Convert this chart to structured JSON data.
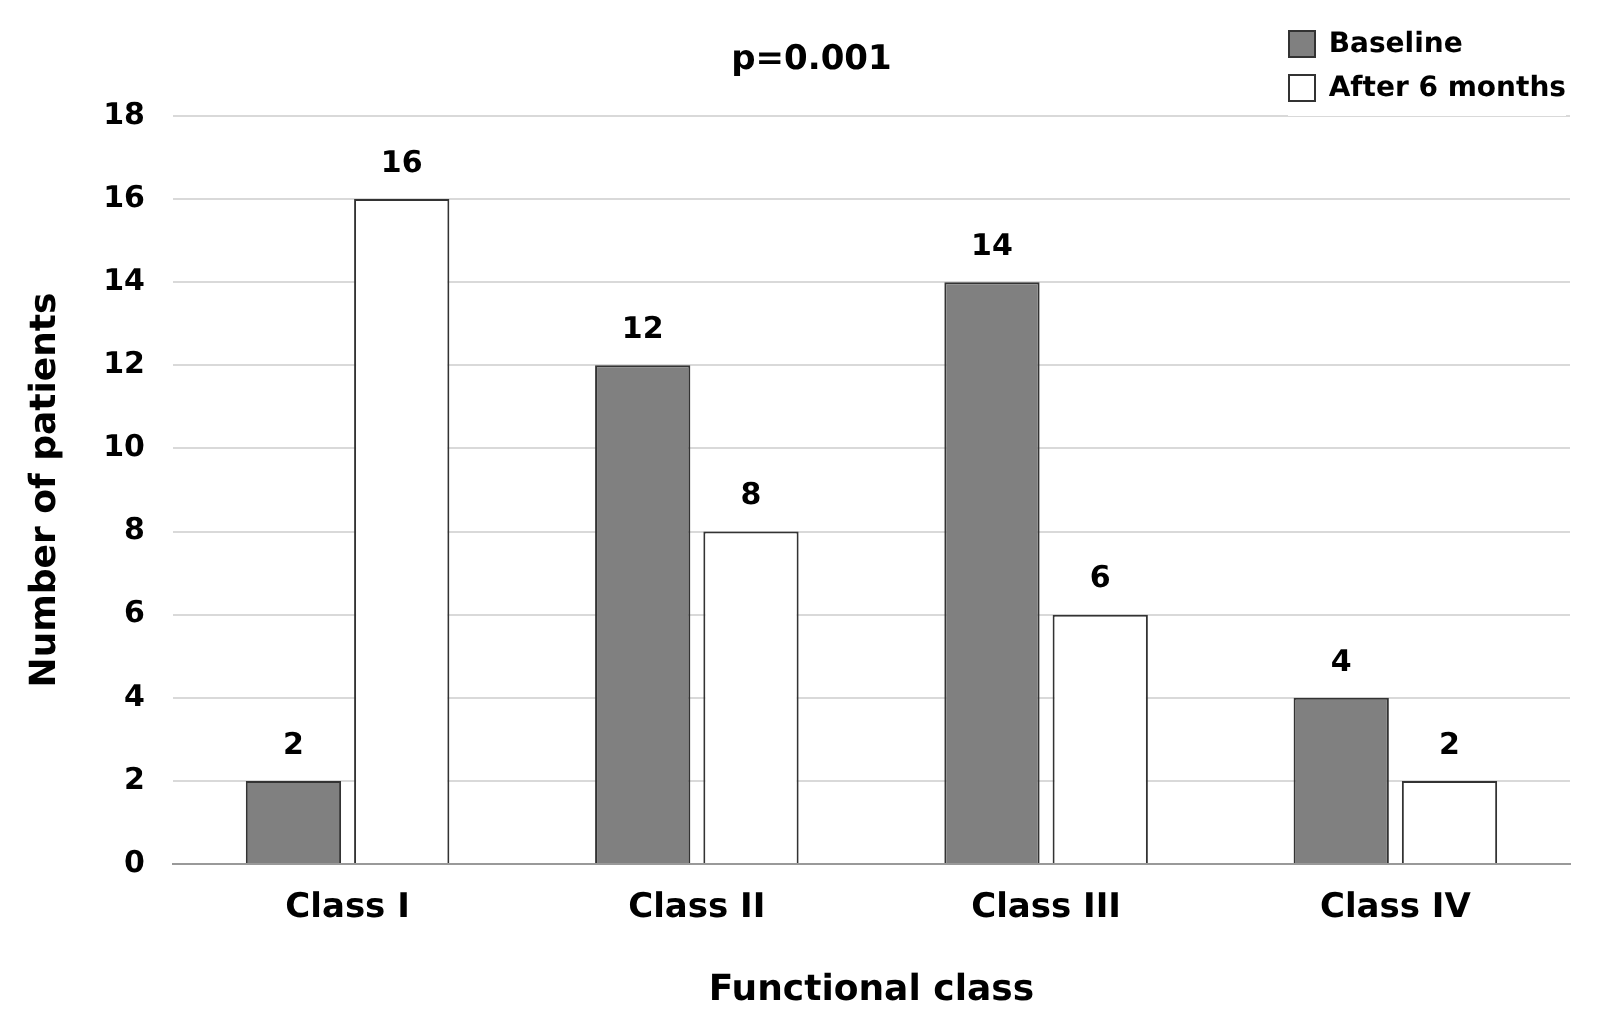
{
  "chart_data": {
    "type": "bar",
    "xlabel": "Functional class",
    "ylabel": "Number of patients",
    "annotations": [
      "p=0.001"
    ],
    "categories": [
      "Class I",
      "Class II",
      "Class III",
      "Class IV"
    ],
    "series": [
      {
        "name": "Baseline",
        "color": "#808080",
        "values": [
          2,
          12,
          14,
          4
        ]
      },
      {
        "name": "After 6 months",
        "color": "#ffffff",
        "values": [
          16,
          8,
          6,
          2
        ]
      }
    ],
    "ylim": [
      0,
      18
    ],
    "yticks": [
      0,
      2,
      4,
      6,
      8,
      10,
      12,
      14,
      16,
      18
    ],
    "grid": "y",
    "legend": "top right",
    "data_labels": true
  }
}
